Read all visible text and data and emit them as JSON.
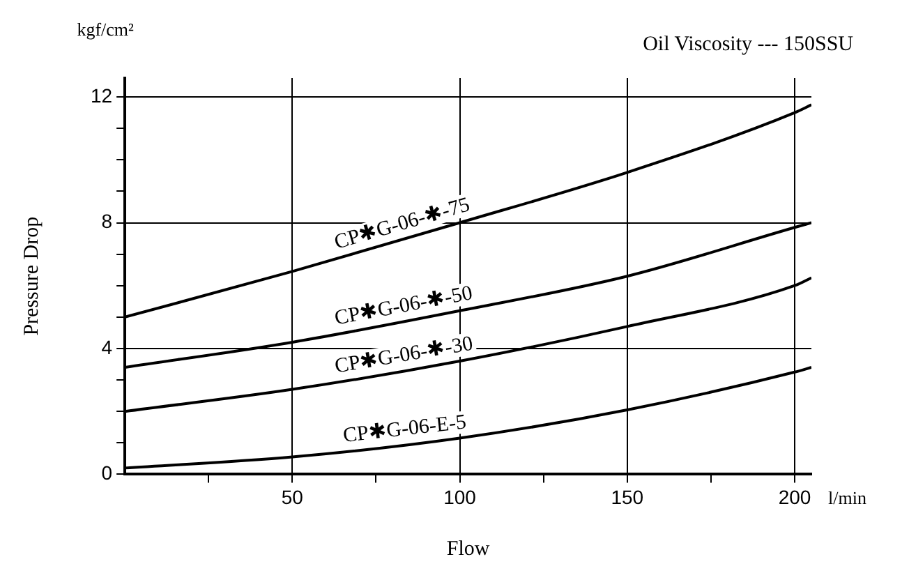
{
  "chart_data": {
    "type": "line",
    "title": "Oil Viscosity --- 150SSU",
    "xlabel": "Flow",
    "ylabel": "Pressure Drop",
    "annotations": [
      "kgf/cm²",
      "l/min"
    ],
    "x": [
      0,
      50,
      100,
      150,
      200,
      205
    ],
    "series": [
      {
        "name": "CP✱G-06-✱-75",
        "color": "#000000",
        "values": [
          5.0,
          6.45,
          8.0,
          9.6,
          11.5,
          11.75
        ]
      },
      {
        "name": "CP✱G-06-✱-50",
        "color": "#000000",
        "values": [
          3.4,
          4.2,
          5.2,
          6.3,
          7.85,
          8.0
        ]
      },
      {
        "name": "CP✱G-06-✱-30",
        "color": "#000000",
        "values": [
          2.0,
          2.7,
          3.6,
          4.7,
          6.0,
          6.25
        ]
      },
      {
        "name": "CP✱G-06-E-5",
        "color": "#000000",
        "values": [
          0.2,
          0.55,
          1.15,
          2.05,
          3.25,
          3.4
        ]
      }
    ],
    "xlim": [
      0,
      205
    ],
    "ylim": [
      0,
      12.6
    ],
    "xticks": [
      {
        "value": 25,
        "label": null
      },
      50,
      {
        "value": 75,
        "label": null
      },
      100,
      {
        "value": 125,
        "label": null
      },
      150,
      {
        "value": 175,
        "label": null
      },
      200
    ],
    "yticks": [
      0,
      {
        "value": 1,
        "label": null
      },
      {
        "value": 2,
        "label": null
      },
      {
        "value": 3,
        "label": null
      },
      4,
      {
        "value": 5,
        "label": null
      },
      {
        "value": 6,
        "label": null
      },
      {
        "value": 7,
        "label": null
      },
      8,
      {
        "value": 9,
        "label": null
      },
      {
        "value": 10,
        "label": null
      },
      {
        "value": 11,
        "label": null
      },
      12
    ],
    "grid": true,
    "legend": false,
    "marker": "none",
    "line_style": "solid"
  }
}
